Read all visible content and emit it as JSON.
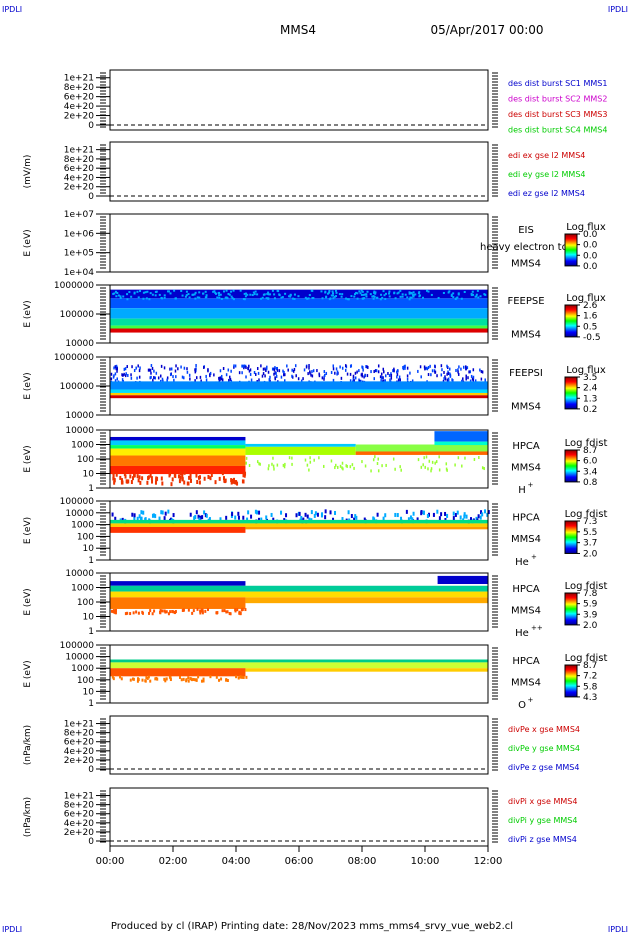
{
  "corner_label": "IPDLI",
  "header": {
    "spacecraft": "MMS4",
    "date": "05/Apr/2017 00:00"
  },
  "footer": {
    "text": "Produced by cl (IRAP)   Printing date: 28/Nov/2023   mms_mms4_srvy_vue_web2.cl"
  },
  "colors": {
    "red": "#cc0000",
    "green": "#00cc00",
    "blue": "#0000cc",
    "magenta": "#cc00cc",
    "axis": "#000000"
  },
  "chart_data": [
    {
      "id": "des_dist",
      "type": "line",
      "ylabel": "",
      "ticks": [
        "1e+21",
        "8e+20",
        "6e+20",
        "4e+20",
        "2e+20",
        "0"
      ],
      "ylim": [
        0,
        1.1e+21
      ],
      "zero_dashed": true,
      "series": [
        {
          "name": "des dist burst SC1 MMS1",
          "color": "blue"
        },
        {
          "name": "des dist burst SC2 MMS2",
          "color": "magenta"
        },
        {
          "name": "des dist burst SC3 MMS3",
          "color": "red"
        },
        {
          "name": "des dist burst SC4 MMS4",
          "color": "green"
        }
      ]
    },
    {
      "id": "edi_e",
      "type": "line",
      "ylabel": "(mV/m)",
      "ticks": [
        "1e+21",
        "8e+20",
        "6e+20",
        "4e+20",
        "2e+20",
        "0"
      ],
      "ylim": [
        0,
        1.1e+21
      ],
      "zero_dashed": true,
      "series": [
        {
          "name": "edi ex gse l2 MMS4",
          "color": "red"
        },
        {
          "name": "edi ey gse l2 MMS4",
          "color": "green"
        },
        {
          "name": "edi ez gse l2 MMS4",
          "color": "blue"
        }
      ]
    },
    {
      "id": "eis",
      "type": "heatmap",
      "ylabel": "E (eV)",
      "ticks": [
        "1e+07",
        "1e+06",
        "1e+05",
        "1e+04"
      ],
      "scale": "log",
      "labels": [
        "EIS",
        "MMS4"
      ],
      "overlay_text": "heavy electron to",
      "cbar_title": "Log flux",
      "cbar_ticks": [
        "0.0",
        "0.0",
        "0.0",
        "0.0"
      ],
      "fill": "none"
    },
    {
      "id": "feeps_e",
      "type": "heatmap",
      "ylabel": "E (eV)",
      "ticks": [
        "1000000",
        "100000",
        "10000"
      ],
      "scale": "log",
      "labels": [
        "FEEPSE",
        "MMS4"
      ],
      "cbar_title": "Log flux",
      "cbar_ticks": [
        "2.6",
        "1.6",
        "0.5",
        "-0.5"
      ],
      "fill": "feepse"
    },
    {
      "id": "feeps_i",
      "type": "heatmap",
      "ylabel": "E (eV)",
      "ticks": [
        "1000000",
        "100000",
        "10000"
      ],
      "scale": "log",
      "labels": [
        "FEEPSI",
        "MMS4"
      ],
      "cbar_title": "Log flux",
      "cbar_ticks": [
        "3.5",
        "2.4",
        "1.3",
        "0.2"
      ],
      "fill": "feepsi"
    },
    {
      "id": "hpca_h",
      "type": "heatmap",
      "ylabel": "E (eV)",
      "ticks": [
        "10000",
        "1000",
        "100",
        "10",
        "1"
      ],
      "scale": "log",
      "labels": [
        "HPCA",
        "MMS4"
      ],
      "species": "H",
      "charge": "+",
      "cbar_title": "Log fdist",
      "cbar_ticks": [
        "8.7",
        "6.0",
        "3.4",
        "0.8"
      ],
      "fill": "hpca_h"
    },
    {
      "id": "hpca_he",
      "type": "heatmap",
      "ylabel": "E (eV)",
      "ticks": [
        "100000",
        "10000",
        "1000",
        "100",
        "10",
        "1"
      ],
      "scale": "log",
      "labels": [
        "HPCA",
        "MMS4"
      ],
      "species": "He",
      "charge": "+",
      "cbar_title": "Log fdist",
      "cbar_ticks": [
        "7.3",
        "5.5",
        "3.7",
        "2.0"
      ],
      "fill": "hpca_he"
    },
    {
      "id": "hpca_hepp",
      "type": "heatmap",
      "ylabel": "E (eV)",
      "ticks": [
        "10000",
        "1000",
        "100",
        "10",
        "1"
      ],
      "scale": "log",
      "labels": [
        "HPCA",
        "MMS4"
      ],
      "species": "He",
      "charge": "++",
      "cbar_title": "Log fdist",
      "cbar_ticks": [
        "7.8",
        "5.9",
        "3.9",
        "2.0"
      ],
      "fill": "hpca_hepp"
    },
    {
      "id": "hpca_o",
      "type": "heatmap",
      "ylabel": "E (eV)",
      "ticks": [
        "100000",
        "10000",
        "1000",
        "100",
        "10",
        "1"
      ],
      "scale": "log",
      "labels": [
        "HPCA",
        "MMS4"
      ],
      "species": "O",
      "charge": "+",
      "cbar_title": "Log fdist",
      "cbar_ticks": [
        "8.7",
        "7.2",
        "5.8",
        "4.3"
      ],
      "fill": "hpca_o"
    },
    {
      "id": "divpe",
      "type": "line",
      "ylabel": "(nPa/km)",
      "ticks": [
        "1e+21",
        "8e+20",
        "6e+20",
        "4e+20",
        "2e+20",
        "0"
      ],
      "ylim": [
        0,
        1.1e+21
      ],
      "zero_dashed": true,
      "series": [
        {
          "name": "divPe x gse MMS4",
          "color": "red"
        },
        {
          "name": "divPe y gse MMS4",
          "color": "green"
        },
        {
          "name": "divPe z gse MMS4",
          "color": "blue"
        }
      ]
    },
    {
      "id": "divpi",
      "type": "line",
      "ylabel": "(nPa/km)",
      "ticks": [
        "1e+21",
        "8e+20",
        "6e+20",
        "4e+20",
        "2e+20",
        "0"
      ],
      "ylim": [
        0,
        1.1e+21
      ],
      "zero_dashed": true,
      "series": [
        {
          "name": "divPi x gse MMS4",
          "color": "red"
        },
        {
          "name": "divPi y gse MMS4",
          "color": "green"
        },
        {
          "name": "divPi z gse MMS4",
          "color": "blue"
        }
      ]
    }
  ],
  "time_axis": {
    "ticks": [
      "00:00",
      "02:00",
      "04:00",
      "06:00",
      "08:00",
      "10:00",
      "12:00"
    ],
    "range_hours": [
      0,
      12
    ]
  }
}
